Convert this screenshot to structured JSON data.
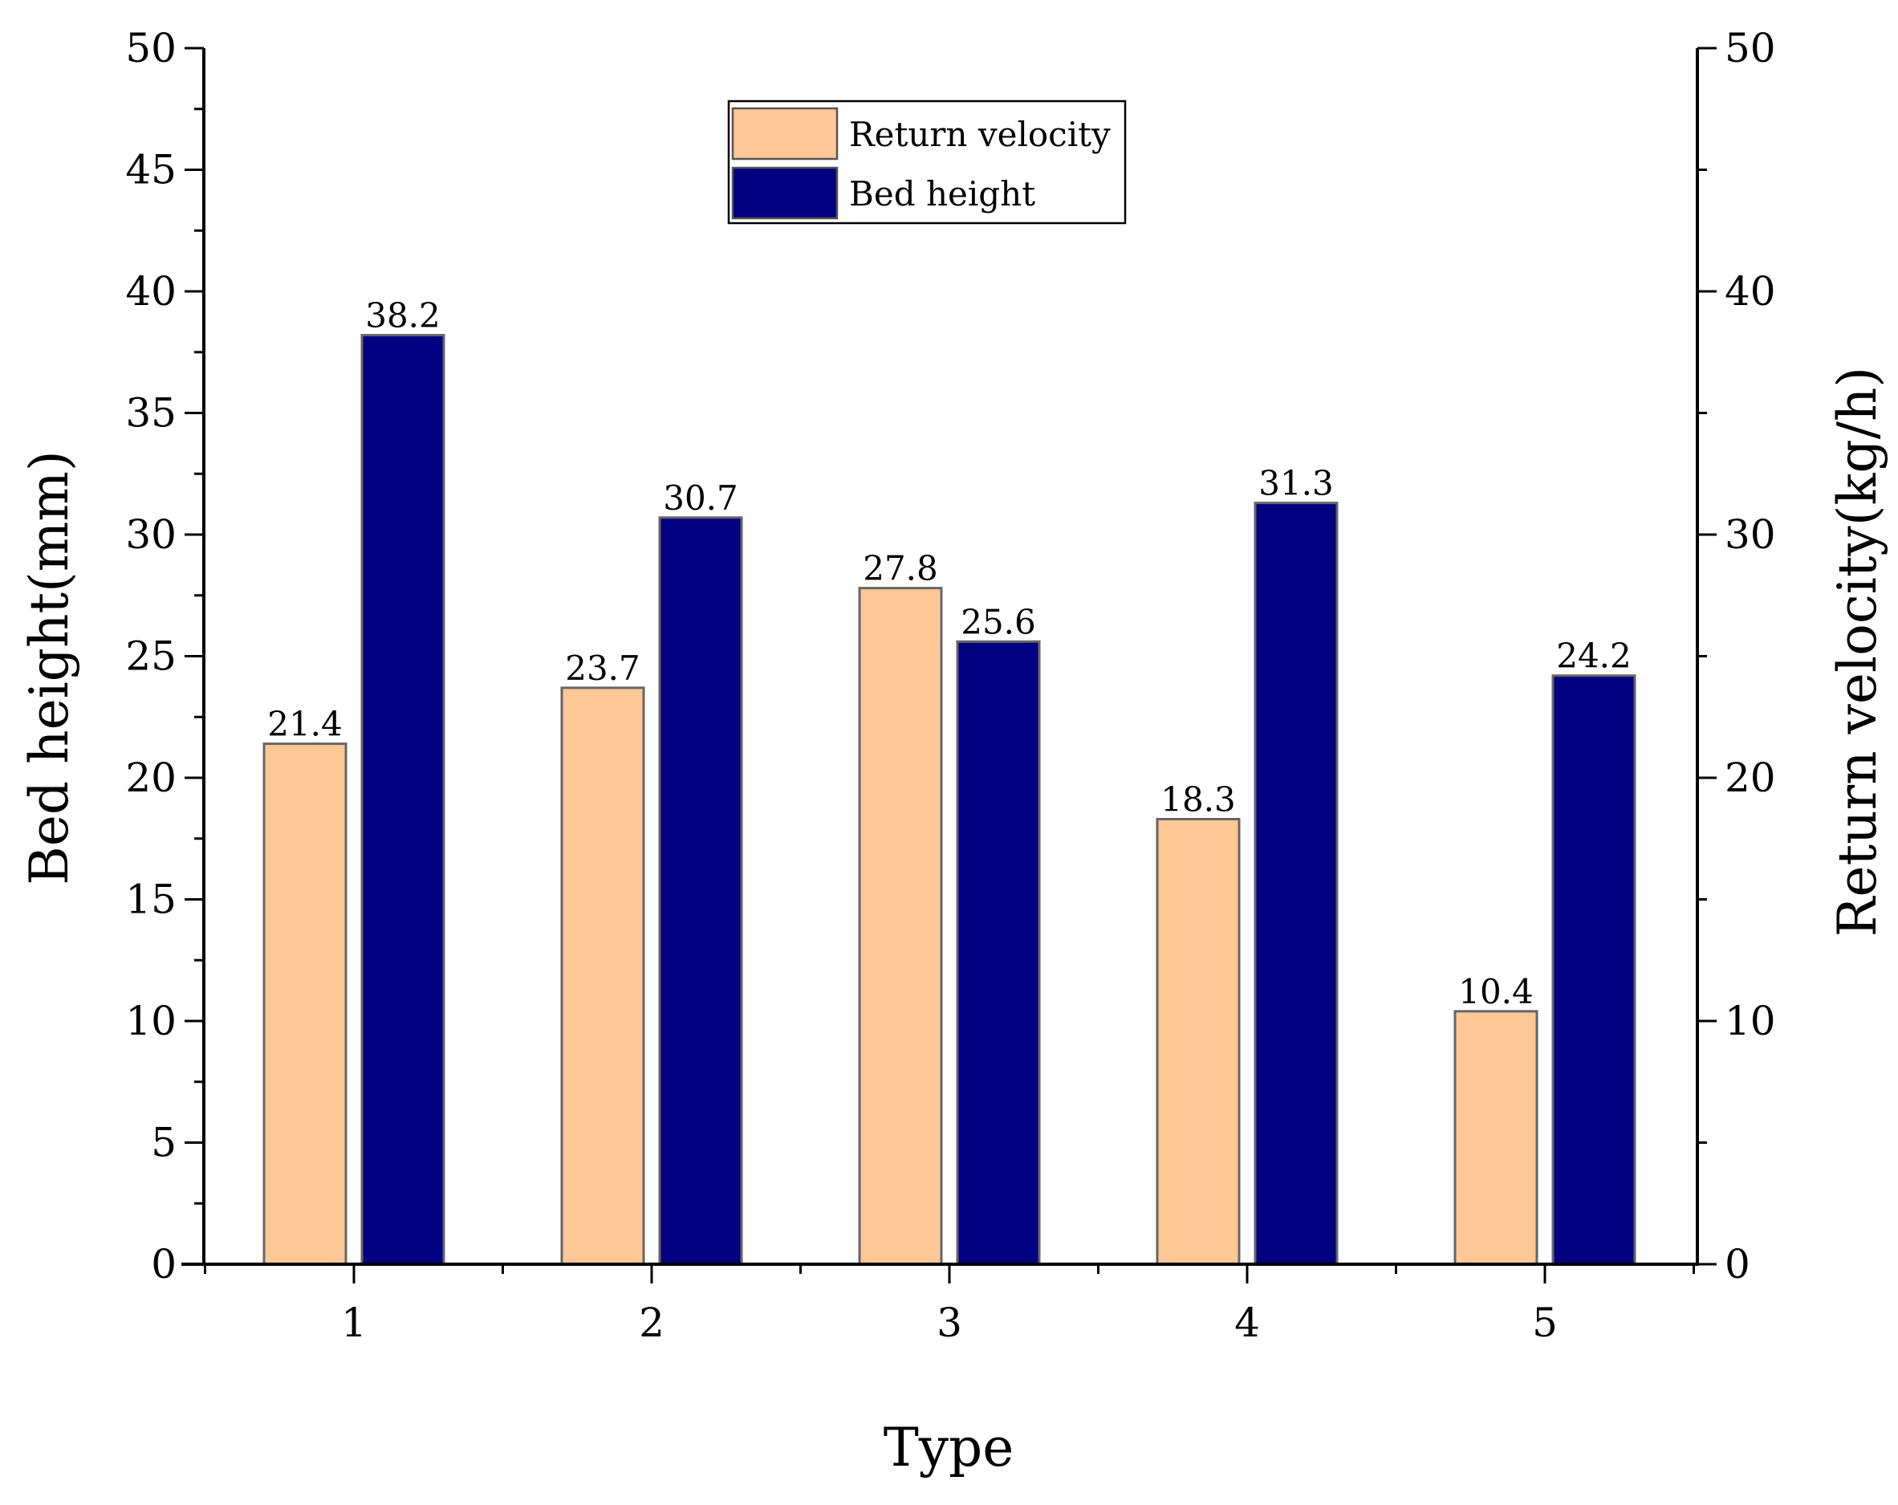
{
  "chart_data": {
    "type": "bar",
    "title": "",
    "xlabel": "Type",
    "ylabel": "Bed height(mm)",
    "y2label": "Return velocity(kg/h)",
    "categories": [
      "1",
      "2",
      "3",
      "4",
      "5"
    ],
    "ylim": [
      0,
      50
    ],
    "y2lim": [
      0,
      50
    ],
    "yticks": [
      "0",
      "5",
      "10",
      "15",
      "20",
      "25",
      "30",
      "35",
      "40",
      "45",
      "50"
    ],
    "y2ticks": [
      "0",
      "10",
      "20",
      "30",
      "40",
      "50"
    ],
    "legend_position": "top-center",
    "series": [
      {
        "name": "Return velocity",
        "axis": "right",
        "color": "#FFC896",
        "values": [
          21.4,
          23.7,
          27.8,
          18.3,
          10.4
        ],
        "labels": [
          "21.4",
          "23.7",
          "27.8",
          "18.3",
          "10.4"
        ]
      },
      {
        "name": "Bed height",
        "axis": "left",
        "color": "#000080",
        "values": [
          38.2,
          30.7,
          25.6,
          31.3,
          24.2
        ],
        "labels": [
          "38.2",
          "30.7",
          "25.6",
          "31.3",
          "24.2"
        ]
      }
    ]
  }
}
